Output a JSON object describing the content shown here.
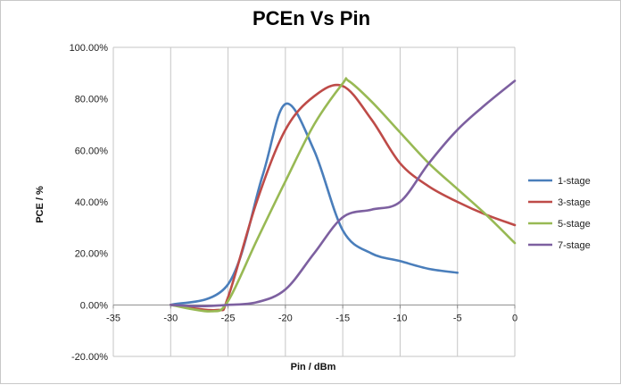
{
  "chart_data": {
    "type": "line",
    "title": "PCEn Vs Pin",
    "xlabel": "Pin / dBm",
    "ylabel": "PCE / %",
    "xlim": [
      -35,
      0
    ],
    "ylim": [
      -20,
      100
    ],
    "x_ticks": [
      "-35",
      "-30",
      "-25",
      "-20",
      "-15",
      "-10",
      "-5",
      "0"
    ],
    "y_ticks": [
      "-20.00%",
      "0.00%",
      "20.00%",
      "40.00%",
      "60.00%",
      "80.00%",
      "100.00%"
    ],
    "grid": "vertical gridlines",
    "legend_position": "right",
    "series": [
      {
        "name": "1-stage",
        "color": "#4a7ebb",
        "x": [
          -30,
          -25,
          -22,
          -20,
          -17.5,
          -15,
          -12.5,
          -10,
          -7.5,
          -5
        ],
        "y": [
          0,
          8,
          50,
          78,
          60,
          29,
          20,
          17,
          14,
          12.5
        ]
      },
      {
        "name": "3-stage",
        "color": "#be4b48",
        "x": [
          -30,
          -26,
          -25,
          -22.5,
          -20,
          -17.5,
          -15,
          -12.5,
          -10,
          -7.5,
          -5,
          -2.5,
          0
        ],
        "y": [
          0,
          -2,
          3,
          40,
          68,
          81,
          85,
          72,
          55,
          46,
          40,
          35,
          31
        ]
      },
      {
        "name": "5-stage",
        "color": "#98b954",
        "x": [
          -30,
          -26.5,
          -25,
          -22.5,
          -20,
          -17.5,
          -15,
          -14.5,
          -12.5,
          -10,
          -7.5,
          -5,
          -2.5,
          0
        ],
        "y": [
          0,
          -2.5,
          1.5,
          25,
          48,
          70,
          86,
          87,
          79,
          67,
          55,
          45,
          35,
          24
        ]
      },
      {
        "name": "7-stage",
        "color": "#7d60a0",
        "x": [
          -30,
          -27.5,
          -25,
          -22.5,
          -20,
          -17.5,
          -15,
          -12.5,
          -10,
          -7.5,
          -5,
          -2.5,
          0
        ],
        "y": [
          0,
          -0.5,
          0,
          1,
          6,
          20,
          34,
          37,
          40,
          55,
          68,
          78,
          87
        ]
      }
    ]
  }
}
